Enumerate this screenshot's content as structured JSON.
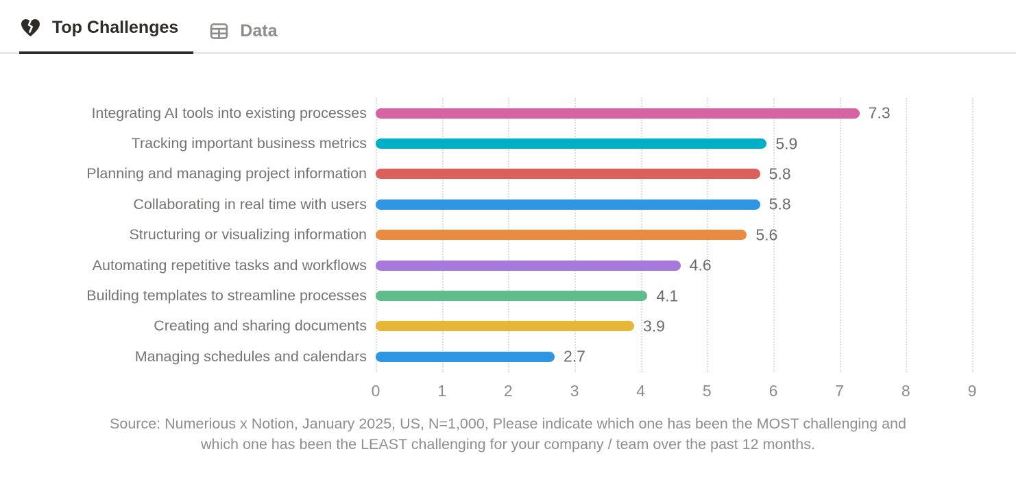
{
  "tabs": [
    {
      "label": "Top Challenges",
      "icon": "broken-heart-icon",
      "active": true
    },
    {
      "label": "Data",
      "icon": "table-icon",
      "active": false
    }
  ],
  "chart_data": {
    "type": "bar",
    "orientation": "horizontal",
    "categories": [
      "Integrating AI tools into existing processes",
      "Tracking important business metrics",
      "Planning and managing project information",
      "Collaborating in real time with users",
      "Structuring or visualizing information",
      "Automating repetitive tasks and workflows",
      "Building templates to streamline processes",
      "Creating and sharing documents",
      "Managing schedules and calendars"
    ],
    "values": [
      7.3,
      5.9,
      5.8,
      5.8,
      5.6,
      4.6,
      4.1,
      3.9,
      2.7
    ],
    "value_labels": [
      "7.3",
      "5.9",
      "5.8",
      "5.8",
      "5.6",
      "4.6",
      "4.1",
      "3.9",
      "2.7"
    ],
    "bar_colors": [
      "#d664a4",
      "#00b0c9",
      "#db5f5b",
      "#2f96e3",
      "#e98c43",
      "#a679dc",
      "#5fbc8b",
      "#e5b637",
      "#2f96e3"
    ],
    "xlabel": "",
    "ylabel": "",
    "xlim": [
      0,
      9
    ],
    "x_ticks": [
      "0",
      "1",
      "2",
      "3",
      "4",
      "5",
      "6",
      "7",
      "8",
      "9"
    ],
    "grid": "vertical-dotted",
    "legend": "none"
  },
  "source": {
    "line1": "Source: Numerious x Notion, January 2025, US, N=1,000, Please indicate which one has been the MOST challenging and",
    "line2": "which one has been the LEAST challenging for your company /  team over the past 12 months."
  },
  "colors": {
    "active_tab_text": "#2d2c29",
    "inactive_tab_text": "#8f8d89",
    "category_text": "#757473",
    "value_text": "#6b6b6b",
    "tick_text": "#8c8b8a",
    "source_text": "#8f8e8d",
    "gridline": "#dcdcdc",
    "tab_underline": "#2d2c29",
    "tab_divider": "#e9e9e8"
  }
}
